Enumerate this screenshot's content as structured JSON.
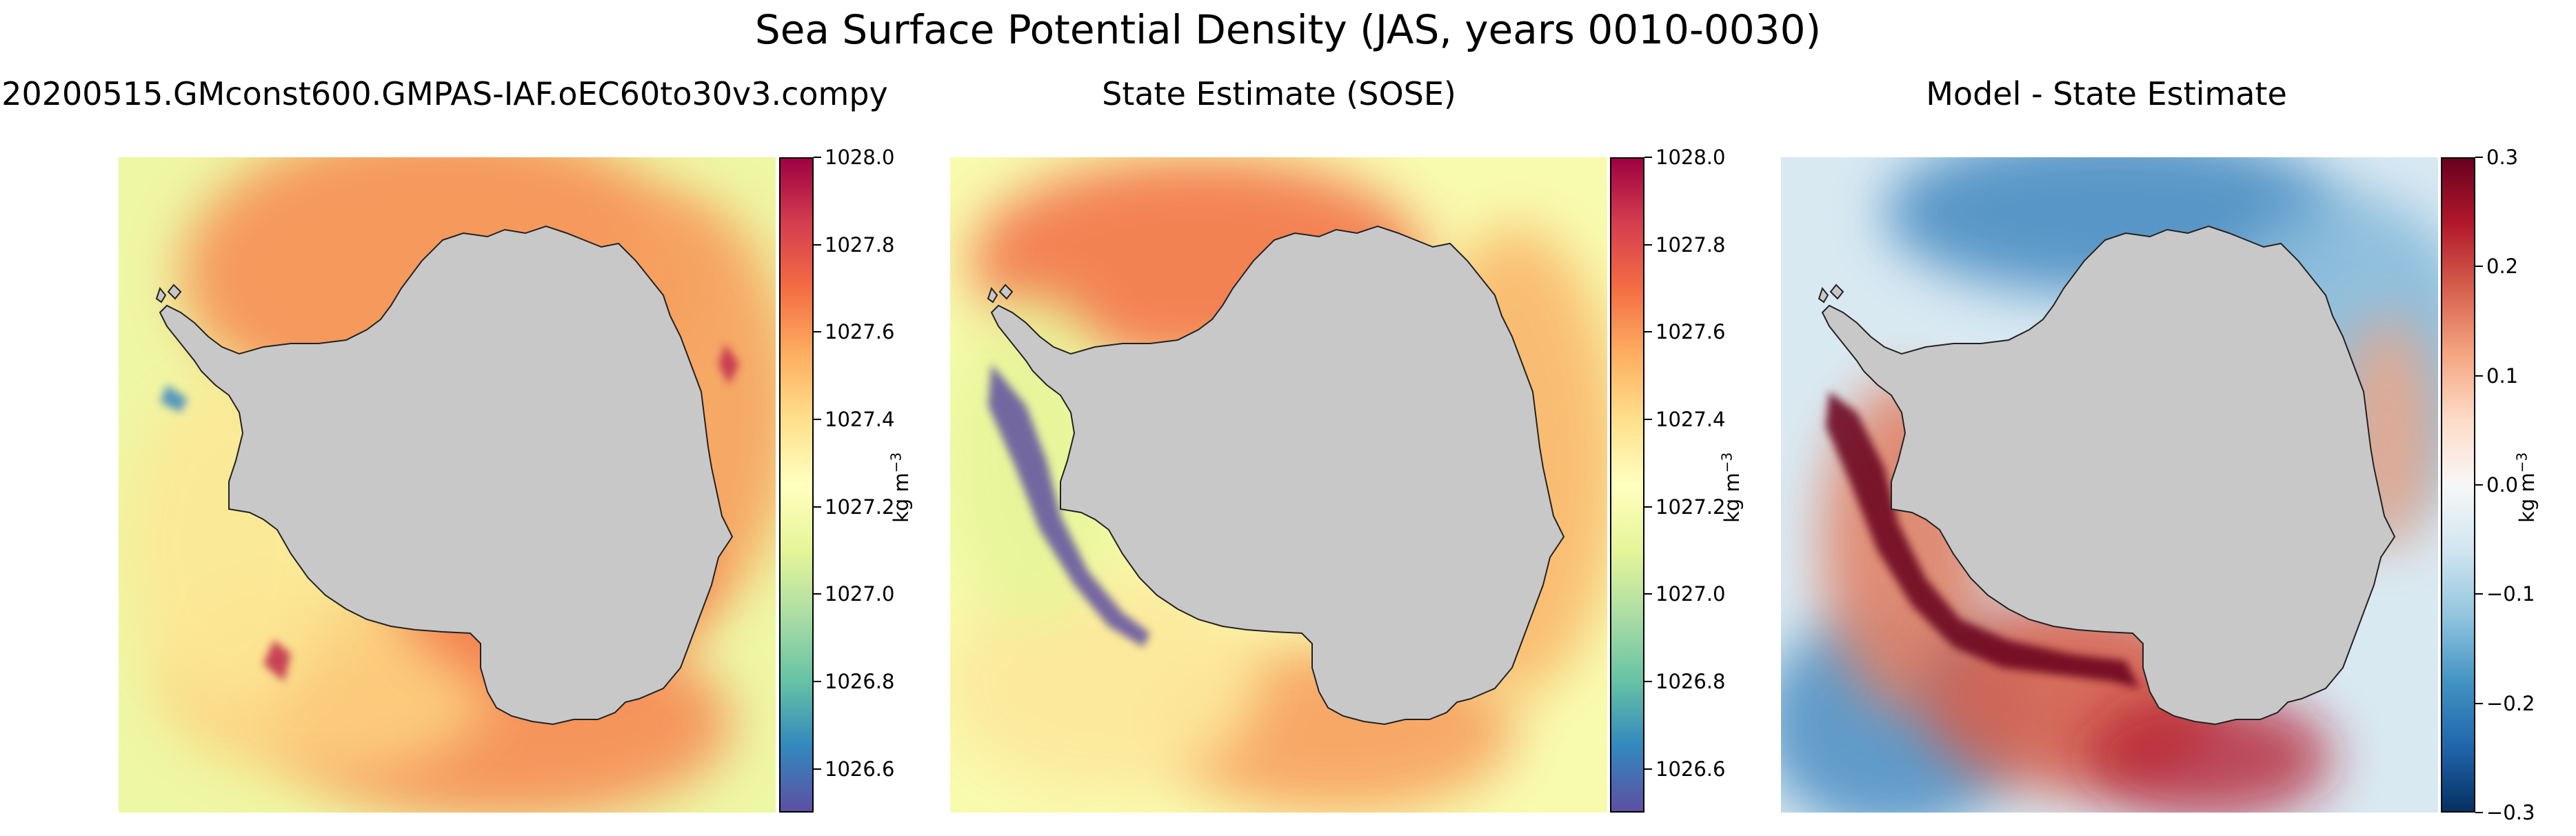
{
  "figure": {
    "suptitle": "Sea Surface Potential Density (JAS, years 0010-0030)"
  },
  "colors": {
    "land": "#c8c8c8",
    "coast": "#222222",
    "spectral_r": [
      "#5e4fa2",
      "#3288bd",
      "#66c2a5",
      "#abdda4",
      "#e6f598",
      "#ffffbf",
      "#fee08b",
      "#fdae61",
      "#f46d43",
      "#d53e4f",
      "#9e0142"
    ],
    "rdbu_r": [
      "#053061",
      "#2166ac",
      "#4393c3",
      "#92c5de",
      "#d1e5f0",
      "#f7f7f7",
      "#fddbc7",
      "#f4a582",
      "#d6604d",
      "#b2182b",
      "#67001f"
    ]
  },
  "chart_data": [
    {
      "type": "heatmap",
      "title": "20200515.GMconst600.GMPAS-IAF.oEC60to30v3.compy",
      "field": "sea surface potential density (model)",
      "colormap": "spectral_r",
      "clim": [
        1026.5,
        1028.0
      ],
      "colorbar_ticks": [
        "1026.6",
        "1026.8",
        "1027.0",
        "1027.2",
        "1027.4",
        "1027.6",
        "1027.8",
        "1028.0"
      ],
      "colorbar_label_main": "kg m",
      "colorbar_label_exp": "−3",
      "grid": false
    },
    {
      "type": "heatmap",
      "title": "State Estimate (SOSE)",
      "field": "sea surface potential density (SOSE)",
      "colormap": "spectral_r",
      "clim": [
        1026.5,
        1028.0
      ],
      "colorbar_ticks": [
        "1026.6",
        "1026.8",
        "1027.0",
        "1027.2",
        "1027.4",
        "1027.6",
        "1027.8",
        "1028.0"
      ],
      "colorbar_label_main": "kg m",
      "colorbar_label_exp": "−3",
      "grid": false
    },
    {
      "type": "heatmap",
      "title": "Model - State Estimate",
      "field": "density difference",
      "colormap": "rdbu_r",
      "clim": [
        -0.3,
        0.3
      ],
      "colorbar_ticks": [
        "−0.3",
        "−0.2",
        "−0.1",
        "0.0",
        "0.1",
        "0.2",
        "0.3"
      ],
      "colorbar_label_main": "kg m",
      "colorbar_label_exp": "−3",
      "grid": false
    }
  ]
}
